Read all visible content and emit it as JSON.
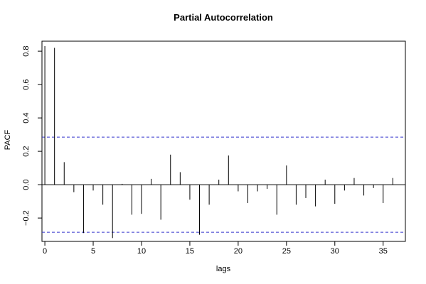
{
  "chart_data": {
    "type": "bar",
    "title": "Partial Autocorrelation",
    "xlabel": "lags",
    "ylabel": "PACF",
    "xlim": [
      -0.3,
      37.3
    ],
    "ylim": [
      -0.34,
      0.86
    ],
    "x_ticks": [
      0,
      5,
      10,
      15,
      20,
      25,
      30,
      35
    ],
    "y_ticks": [
      -0.2,
      0.0,
      0.2,
      0.4,
      0.6,
      0.8
    ],
    "y_tick_labels": [
      "−0.2",
      "0.0",
      "0.2",
      "0.4",
      "0.6",
      "0.8"
    ],
    "confidence_bound": 0.285,
    "grid": false,
    "legend": "none",
    "lags": [
      0,
      1,
      2,
      3,
      4,
      5,
      6,
      7,
      8,
      9,
      10,
      11,
      12,
      13,
      14,
      15,
      16,
      17,
      18,
      19,
      20,
      21,
      22,
      23,
      24,
      25,
      26,
      27,
      28,
      29,
      30,
      31,
      32,
      33,
      34,
      35,
      36
    ],
    "values": [
      0.83,
      0.82,
      0.135,
      -0.045,
      -0.29,
      -0.035,
      -0.12,
      -0.32,
      0.005,
      -0.18,
      -0.175,
      0.035,
      -0.21,
      0.18,
      0.075,
      -0.09,
      -0.3,
      -0.12,
      0.03,
      0.175,
      -0.04,
      -0.11,
      -0.04,
      -0.025,
      -0.18,
      0.115,
      -0.12,
      -0.08,
      -0.13,
      0.03,
      -0.115,
      -0.035,
      0.04,
      -0.065,
      -0.02,
      -0.11,
      0.04
    ],
    "colors": {
      "bars": "#000000",
      "confidence_lines": "#3333cc"
    }
  }
}
